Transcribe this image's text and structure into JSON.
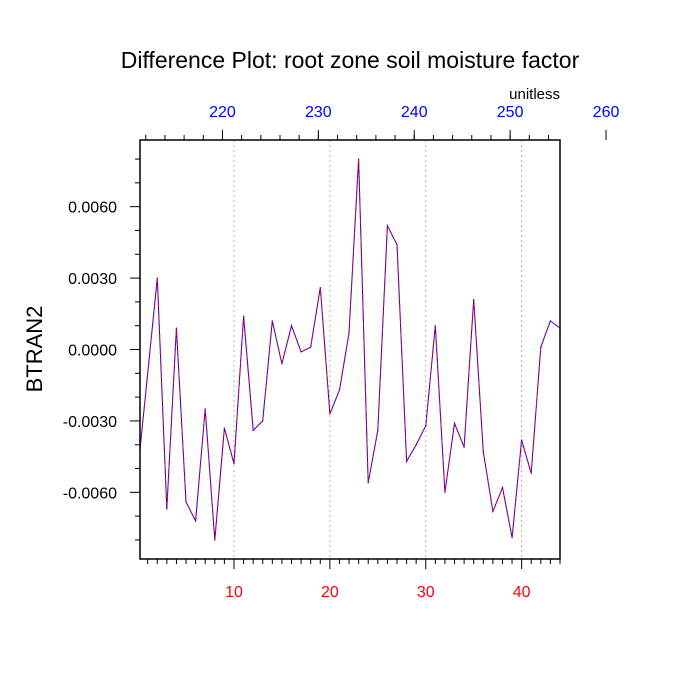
{
  "chart_data": {
    "type": "line",
    "title": "Difference Plot: root zone soil moisture factor",
    "units_label": "unitless",
    "ylabel": "BTRAN2",
    "xlim": [
      0.2,
      44
    ],
    "ylim": [
      -0.0088,
      0.0088
    ],
    "x_ticks_bottom": {
      "values": [
        10,
        20,
        30,
        40
      ],
      "labels": [
        "10",
        "20",
        "30",
        "40"
      ],
      "color": "#ff0000"
    },
    "x_ticks_top": {
      "values": [
        8.8,
        18.8,
        28.8,
        38.8,
        48.8
      ],
      "labels": [
        "220",
        "230",
        "240",
        "250",
        "260"
      ],
      "color": "#0000ff"
    },
    "y_ticks": {
      "values": [
        0.006,
        0.003,
        0.0,
        -0.003,
        -0.006
      ],
      "labels": [
        "0.0060",
        "0.0030",
        "0.0000",
        "-0.0030",
        "-0.0060"
      ]
    },
    "grid": "vertical-dotted",
    "series": [
      {
        "line_style": "dashed",
        "line_color": "#0000ff",
        "dash_color": "#ff0000",
        "x": [
          0.2,
          2,
          3,
          4,
          5,
          6,
          7,
          8,
          9,
          10,
          11,
          12,
          13,
          14,
          15,
          16,
          17,
          18,
          19,
          20,
          21,
          22,
          23,
          24,
          25,
          26,
          27,
          28,
          29,
          30,
          31,
          32,
          33,
          34,
          35,
          36,
          37,
          38,
          39,
          40,
          41,
          42,
          43,
          44
        ],
        "values": [
          -0.0042,
          0.003,
          -0.0067,
          0.0009,
          -0.0064,
          -0.0072,
          -0.0025,
          -0.008,
          -0.0033,
          -0.0048,
          0.0014,
          -0.0034,
          -0.003,
          0.0012,
          -0.0006,
          0.001,
          -0.0001,
          0.0001,
          0.0026,
          -0.0027,
          -0.0017,
          0.0007,
          0.008,
          -0.0056,
          -0.0034,
          0.0052,
          0.0044,
          -0.0047,
          -0.004,
          -0.0032,
          0.001,
          -0.006,
          -0.0031,
          -0.0041,
          0.0021,
          -0.0043,
          -0.0068,
          -0.0058,
          -0.0079,
          -0.0038,
          -0.0052,
          0.0001,
          0.0012,
          0.0009
        ]
      }
    ]
  }
}
